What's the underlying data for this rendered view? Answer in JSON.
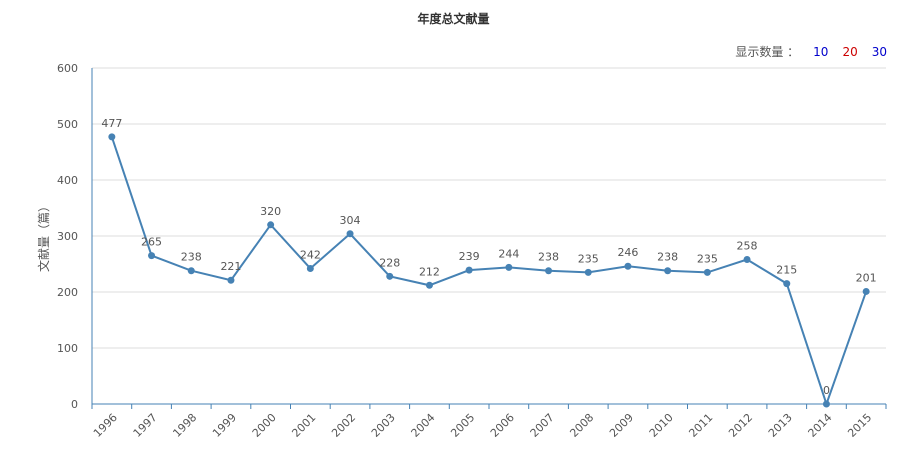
{
  "chart_data": {
    "type": "line",
    "title": "年度总文献量",
    "ylabel": "文献量（篇）",
    "xlabel": "",
    "ylim": [
      0,
      600
    ],
    "yticks": [
      0,
      100,
      200,
      300,
      400,
      500,
      600
    ],
    "grid": true,
    "categories": [
      "1996",
      "1997",
      "1998",
      "1999",
      "2000",
      "2001",
      "2002",
      "2003",
      "2004",
      "2005",
      "2006",
      "2007",
      "2008",
      "2009",
      "2010",
      "2011",
      "2012",
      "2013",
      "2014",
      "2015"
    ],
    "values": [
      477,
      265,
      238,
      221,
      320,
      242,
      304,
      228,
      212,
      239,
      244,
      238,
      235,
      246,
      238,
      235,
      258,
      215,
      0,
      201
    ],
    "line_color": "#4682b4"
  },
  "display_count": {
    "label": "显示数量 ：",
    "options": [
      {
        "label": "10",
        "color": "#0000cc"
      },
      {
        "label": "20",
        "color": "#cc0000"
      },
      {
        "label": "30",
        "color": "#0000cc"
      }
    ]
  }
}
